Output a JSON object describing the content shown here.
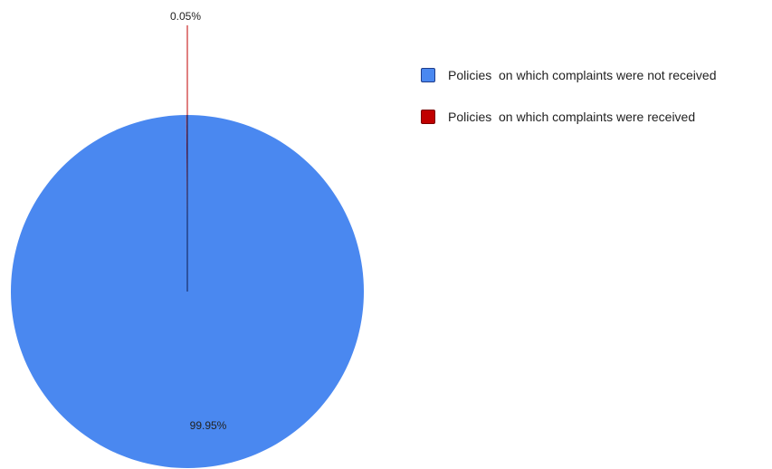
{
  "chart_data": {
    "type": "pie",
    "title": "",
    "categories": [
      "Policies  on which complaints were not received",
      "Policies  on which complaints were received"
    ],
    "values": [
      99.95,
      0.05
    ],
    "data_labels": [
      "99.95%",
      "0.05%"
    ],
    "colors": [
      "#4a88f0",
      "#c00000"
    ],
    "legend_position": "right"
  }
}
